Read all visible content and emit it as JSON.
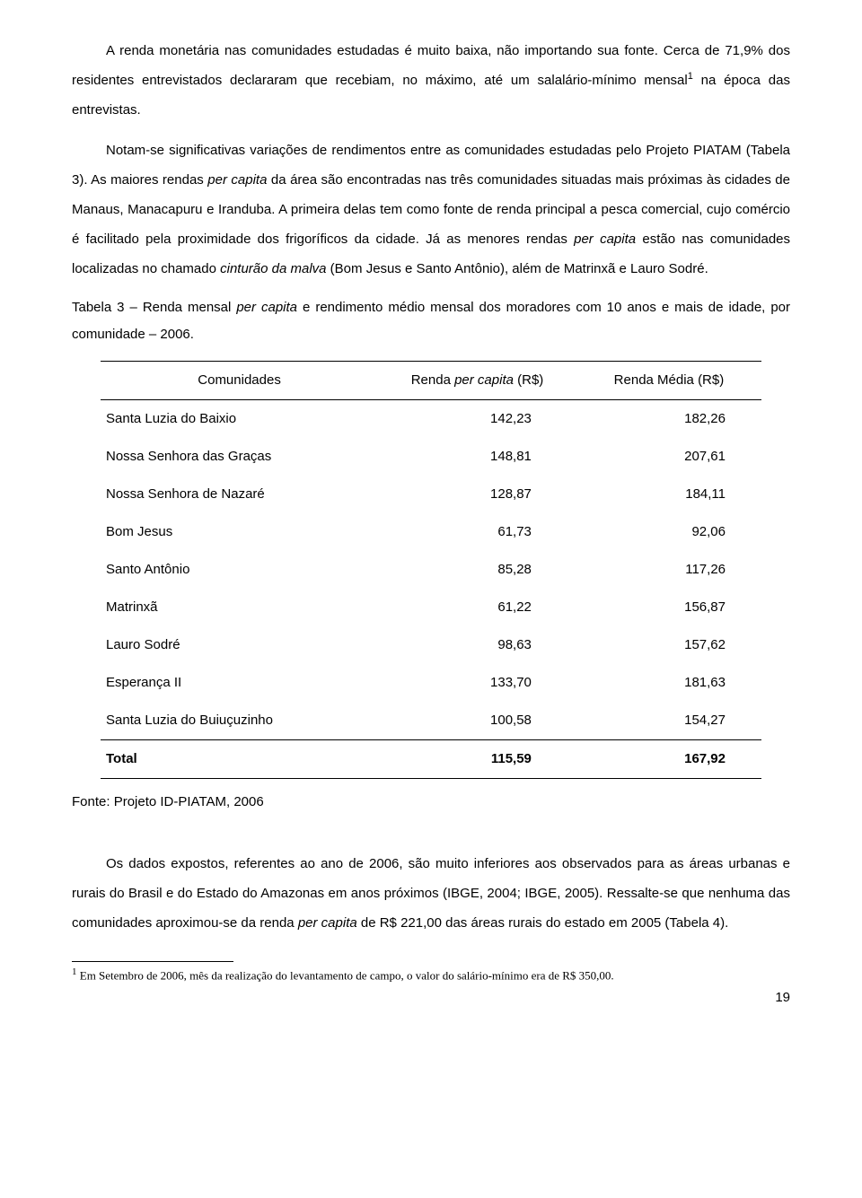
{
  "paragraphs": {
    "p1_a": "A renda monetária nas comunidades estudadas é muito baixa, não importando sua fonte. Cerca de 71,9% dos residentes entrevistados declararam que recebiam, no máximo, até um salalário-mínimo mensal",
    "p1_sup": "1",
    "p1_b": " na época das entrevistas.",
    "p2_a": "Notam-se significativas variações de rendimentos entre as comunidades estudadas pelo Projeto PIATAM (Tabela 3). As maiores rendas ",
    "p2_b": " da área são encontradas nas três comunidades situadas mais próximas às cidades de Manaus, Manacapuru e Iranduba. A primeira delas tem como fonte de renda principal a pesca comercial, cujo comércio é facilitado pela proximidade dos frigoríficos da cidade. Já as menores rendas ",
    "p2_c": " estão nas comunidades localizadas no chamado ",
    "p2_d": " (Bom Jesus e Santo Antônio), além de Matrinxã e Lauro Sodré.",
    "italic_percapita": "per capita",
    "italic_cinturao": "cinturão da malva",
    "caption_a": "Tabela 3 – Renda mensal ",
    "caption_b": " e rendimento médio mensal dos moradores com 10 anos e mais de idade, por comunidade – 2006.",
    "source": "Fonte: Projeto ID-PIATAM, 2006",
    "p3_a": "Os dados expostos, referentes ao ano de 2006, são muito inferiores aos observados para as áreas urbanas e rurais do Brasil e do Estado do Amazonas em anos próximos (IBGE, 2004; IBGE, 2005). Ressalte-se que nenhuma das comunidades aproximou-se da renda ",
    "p3_b": " de R$ 221,00 das áreas rurais do estado em 2005 (Tabela 4).",
    "footnote_sup": "1",
    "footnote": " Em Setembro de 2006, mês da realização do levantamento de campo, o valor do salário-mínimo era de R$ 350,00.",
    "pagenum": "19"
  },
  "table": {
    "columns": [
      "Comunidades",
      "Renda per capita (R$)",
      "Renda Média (R$)"
    ],
    "col0_label": "Comunidades",
    "col1_label_a": "Renda ",
    "col1_label_b": " (R$)",
    "col2_label": "Renda Média (R$)",
    "rows": [
      {
        "name": "Santa Luzia do Baixio",
        "rpc": "142,23",
        "rm": "182,26"
      },
      {
        "name": "Nossa Senhora das Graças",
        "rpc": "148,81",
        "rm": "207,61"
      },
      {
        "name": "Nossa Senhora de Nazaré",
        "rpc": "128,87",
        "rm": "184,11"
      },
      {
        "name": "Bom Jesus",
        "rpc": "61,73",
        "rm": "92,06"
      },
      {
        "name": "Santo Antônio",
        "rpc": "85,28",
        "rm": "117,26"
      },
      {
        "name": "Matrinxã",
        "rpc": "61,22",
        "rm": "156,87"
      },
      {
        "name": "Lauro Sodré",
        "rpc": "98,63",
        "rm": "157,62"
      },
      {
        "name": "Esperança II",
        "rpc": "133,70",
        "rm": "181,63"
      },
      {
        "name": "Santa Luzia do Buiuçuzinho",
        "rpc": "100,58",
        "rm": "154,27"
      }
    ],
    "total": {
      "name": "Total",
      "rpc": "115,59",
      "rm": "167,92"
    },
    "col_widths": [
      "42%",
      "30%",
      "28%"
    ],
    "border_color": "#000000",
    "background_color": "#ffffff",
    "font_size_pt": 11
  },
  "style": {
    "page_bg": "#ffffff",
    "text_color": "#000000"
  }
}
